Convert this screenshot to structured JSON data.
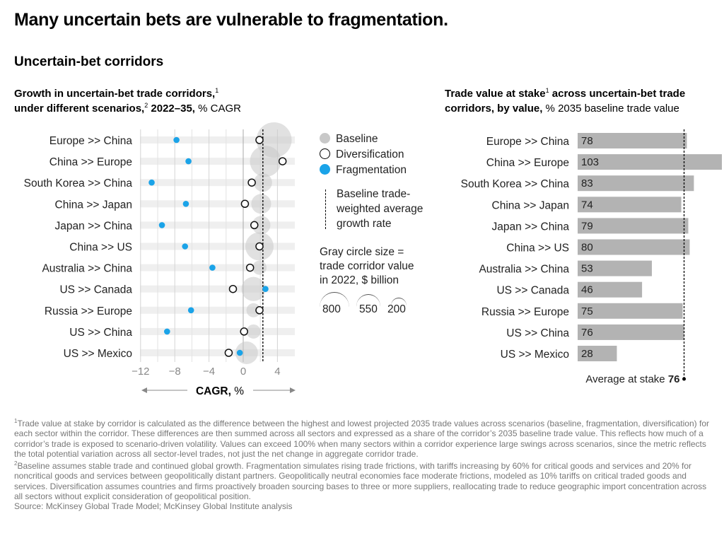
{
  "title": "Many uncertain bets are vulnerable to fragmentation.",
  "subtitle": "Uncertain-bet corridors",
  "left_chart_title": {
    "bold": "Growth in uncertain-bet trade corridors,",
    "sup1": "1",
    "line2_bold": "under different scenarios,",
    "sup2": "2",
    "line2_bold2": " 2022–35,",
    "line2_rest": " % CAGR"
  },
  "right_chart_title": {
    "bold1": "Trade value at stake",
    "sup1": "1",
    "bold1b": " across uncertain-bet trade",
    "line2_bold": "corridors, by value,",
    "line2_rest": " % 2035 baseline trade value"
  },
  "legend": {
    "baseline": "Baseline",
    "diversification": "Diversification",
    "fragmentation": "Fragmentation",
    "avg_line": [
      "Baseline trade-",
      "weighted average",
      "growth rate"
    ],
    "size_note": [
      "Gray circle size =",
      "trade corridor value",
      "in 2022, $ billion"
    ],
    "size_examples": [
      "800",
      "550",
      "200"
    ]
  },
  "colors": {
    "fragmentation": "#1aa3e8",
    "baseline": "#c8c8c8",
    "bar": "#b3b3b3",
    "row_band": "#efefef"
  },
  "chart_data": [
    {
      "type": "scatter",
      "title": "Growth in uncertain-bet trade corridors, under different scenarios, 2022–35, % CAGR",
      "xlabel": "CAGR, %",
      "xlim": [
        -12.5,
        5
      ],
      "xticks": [
        "−12",
        "−8",
        "−4",
        "0",
        "4"
      ],
      "xtick_values": [
        -12,
        -8,
        -4,
        0,
        4
      ],
      "grid": true,
      "categories": [
        "Europe >> China",
        "China >> Europe",
        "South Korea >> China",
        "China >> Japan",
        "Japan >> China",
        "China >> US",
        "Australia >> China",
        "US >> Canada",
        "Russia >> Europe",
        "US >> China",
        "US >> Mexico"
      ],
      "series": [
        {
          "name": "Baseline",
          "values": [
            3.6,
            2.6,
            2.3,
            2.1,
            2.1,
            1.9,
            1.9,
            1.2,
            1.2,
            1.2,
            0.4
          ],
          "size_2022_bn": [
            1030,
            800,
            280,
            325,
            280,
            660,
            165,
            480,
            165,
            165,
            420
          ]
        },
        {
          "name": "Diversification",
          "values": [
            1.9,
            4.6,
            1.0,
            0.2,
            1.3,
            1.9,
            0.8,
            -1.2,
            1.9,
            0.1,
            -1.7
          ]
        },
        {
          "name": "Fragmentation",
          "values": [
            -7.8,
            -6.4,
            -10.7,
            -6.7,
            -9.5,
            -6.8,
            -3.6,
            2.6,
            -6.1,
            -8.9,
            -0.4
          ]
        }
      ],
      "reference_line": {
        "label": "Baseline trade-weighted average growth rate",
        "value": 2.3
      }
    },
    {
      "type": "bar",
      "orientation": "horizontal",
      "title": "Trade value at stake across uncertain-bet trade corridors, by value, % 2035 baseline trade value",
      "categories": [
        "Europe >> China",
        "China >> Europe",
        "South Korea >> China",
        "China >> Japan",
        "Japan >> China",
        "China >> US",
        "Australia >> China",
        "US >> Canada",
        "Russia >> Europe",
        "US >> China",
        "US >> Mexico"
      ],
      "values": [
        78,
        103,
        83,
        74,
        79,
        80,
        53,
        46,
        75,
        76,
        28
      ],
      "xlim": [
        0,
        103
      ],
      "average": {
        "label": "Average at stake",
        "value": 76
      }
    }
  ],
  "footnotes": [
    {
      "sup": "1",
      "text": "Trade value at stake by corridor is calculated as the difference between the highest and lowest projected 2035 trade values across scenarios (baseline, fragmentation, diversification) for each sector within the corridor. These differences are then summed across all sectors and expressed as a share of the corridor’s 2035 baseline trade value. This reflects how much of a corridor’s trade is exposed to scenario-driven volatility. Values can exceed 100% when many sectors within a corridor experience large swings across scenarios, since the metric reflects the total potential variation across all sector-level trades, not just the net change in aggregate corridor trade."
    },
    {
      "sup": "2",
      "text": "Baseline assumes stable trade and continued global growth. Fragmentation simulates rising trade frictions, with tariffs increasing by 60% for critical goods and services and 20% for noncritical goods and services between geopolitically distant partners. Geopolitically neutral economies face moderate frictions, modeled as 10% tariffs on critical traded goods and services. Diversification assumes countries and firms proactively broaden sourcing bases to three or more suppliers, reallocating trade to reduce geographic import concentration across all sectors without explicit consideration of geopolitical position."
    }
  ],
  "source": "Source: McKinsey Global Trade Model; McKinsey Global Institute analysis"
}
